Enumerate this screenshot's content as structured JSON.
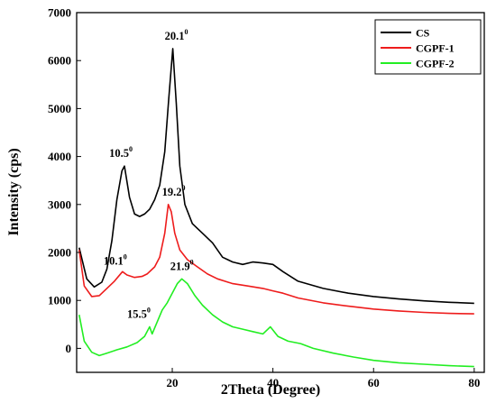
{
  "chart_data": {
    "type": "line",
    "title": "",
    "xlabel": "2Theta (Degree)",
    "ylabel": "Intensity (cps)",
    "xlim": [
      1,
      82
    ],
    "ylim": [
      -500,
      7000
    ],
    "xticks": [
      20,
      40,
      60,
      80
    ],
    "yticks": [
      0,
      1000,
      2000,
      3000,
      4000,
      5000,
      6000,
      7000
    ],
    "grid": false,
    "legend_position": "top-right",
    "series": [
      {
        "name": "CS",
        "color": "#000000",
        "x": [
          1.5,
          3,
          4.5,
          6,
          7,
          8,
          9,
          10,
          10.5,
          11.5,
          12.5,
          13.5,
          14.5,
          15.5,
          16.5,
          17.5,
          18.5,
          19.3,
          20.1,
          20.8,
          21.5,
          22.5,
          24,
          26,
          28,
          30,
          32,
          34,
          36,
          38,
          40,
          42,
          45,
          50,
          55,
          60,
          65,
          70,
          75,
          80
        ],
        "y": [
          2100,
          1450,
          1280,
          1380,
          1650,
          2250,
          3100,
          3700,
          3800,
          3150,
          2800,
          2750,
          2800,
          2900,
          3100,
          3400,
          4100,
          5200,
          6250,
          5100,
          3800,
          3000,
          2600,
          2400,
          2200,
          1900,
          1800,
          1750,
          1800,
          1780,
          1750,
          1600,
          1400,
          1250,
          1150,
          1080,
          1030,
          990,
          960,
          940
        ]
      },
      {
        "name": "CGPF-1",
        "color": "#ee1c1c",
        "x": [
          1.5,
          2.5,
          4,
          5.5,
          7,
          8.5,
          10.1,
          11,
          12.5,
          14,
          15,
          16.5,
          17.5,
          18.5,
          19.2,
          19.8,
          20.5,
          21.5,
          23,
          25,
          27,
          29,
          32,
          35,
          38,
          40,
          42,
          45,
          50,
          55,
          60,
          65,
          70,
          75,
          80
        ],
        "y": [
          2050,
          1300,
          1080,
          1100,
          1250,
          1400,
          1600,
          1530,
          1480,
          1500,
          1550,
          1700,
          1900,
          2400,
          3000,
          2850,
          2400,
          2050,
          1850,
          1700,
          1550,
          1450,
          1350,
          1300,
          1250,
          1200,
          1150,
          1050,
          950,
          880,
          820,
          780,
          750,
          730,
          720
        ]
      },
      {
        "name": "CGPF-2",
        "color": "#22ee22",
        "x": [
          1.5,
          2.5,
          4,
          5.5,
          7,
          9,
          11,
          13,
          14.5,
          15.5,
          16,
          17,
          18,
          19,
          20,
          21,
          21.9,
          23,
          24.5,
          26,
          28,
          30,
          32,
          34,
          36,
          38,
          39.5,
          41,
          43,
          45.5,
          48,
          52,
          56,
          60,
          65,
          70,
          75,
          80
        ],
        "y": [
          700,
          150,
          -80,
          -150,
          -100,
          -30,
          30,
          120,
          250,
          450,
          300,
          550,
          800,
          950,
          1150,
          1350,
          1450,
          1350,
          1100,
          900,
          700,
          550,
          450,
          400,
          350,
          300,
          450,
          250,
          150,
          100,
          0,
          -100,
          -180,
          -250,
          -300,
          -330,
          -360,
          -380
        ]
      }
    ],
    "annotations": [
      {
        "x": 10.5,
        "y": 3800,
        "label": "10.5",
        "sup": "0"
      },
      {
        "x": 20.1,
        "y": 6250,
        "label": "20.1",
        "sup": "0"
      },
      {
        "x": 10.1,
        "y": 1600,
        "label": "10.1",
        "sup": "0"
      },
      {
        "x": 19.2,
        "y": 3000,
        "label": "19.2",
        "sup": "0"
      },
      {
        "x": 15.5,
        "y": 450,
        "label": "15.5",
        "sup": "0"
      },
      {
        "x": 21.9,
        "y": 1450,
        "label": "21.9",
        "sup": "0"
      }
    ]
  }
}
